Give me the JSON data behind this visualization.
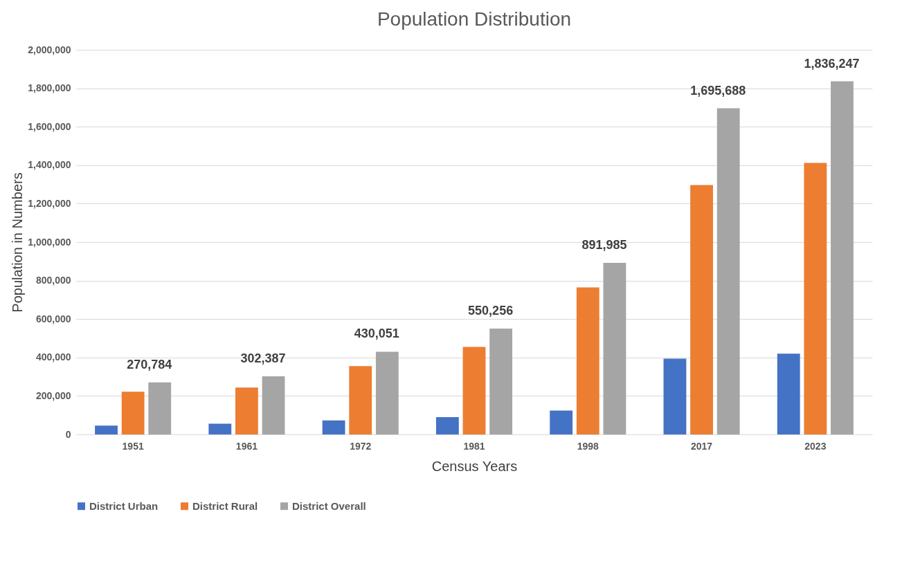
{
  "chart_data": {
    "type": "bar",
    "title": "Population Distribution",
    "xlabel": "Census Years",
    "ylabel": "Population in Numbers",
    "categories": [
      "1951",
      "1961",
      "1972",
      "1981",
      "1998",
      "2017",
      "2023"
    ],
    "series": [
      {
        "name": "District Urban",
        "color": "#4472c4",
        "values": [
          46000,
          56000,
          73000,
          90000,
          124000,
          394000,
          420000
        ]
      },
      {
        "name": "District Rural",
        "color": "#ed7d31",
        "values": [
          222000,
          244000,
          355000,
          455000,
          764000,
          1297000,
          1412000
        ]
      },
      {
        "name": "District Overall",
        "color": "#a5a5a5",
        "values": [
          270784,
          302387,
          430051,
          550256,
          891985,
          1695688,
          1836247
        ],
        "value_labels": [
          "270,784",
          "302,387",
          "430,051",
          "550,256",
          "891,985",
          "1,695,688",
          "1,836,247"
        ]
      }
    ],
    "ylim": [
      0,
      2000000
    ],
    "yticks": [
      {
        "value": 0,
        "label": "0"
      },
      {
        "value": 200000,
        "label": "200,000"
      },
      {
        "value": 400000,
        "label": "400,000"
      },
      {
        "value": 600000,
        "label": "600,000"
      },
      {
        "value": 800000,
        "label": "800,000"
      },
      {
        "value": 1000000,
        "label": "1,000,000"
      },
      {
        "value": 1200000,
        "label": "1,200,000"
      },
      {
        "value": 1400000,
        "label": "1,400,000"
      },
      {
        "value": 1600000,
        "label": "1,600,000"
      },
      {
        "value": 1800000,
        "label": "1,800,000"
      },
      {
        "value": 2000000,
        "label": "2,000,000"
      }
    ],
    "grid": "y",
    "legend": "bottom"
  }
}
